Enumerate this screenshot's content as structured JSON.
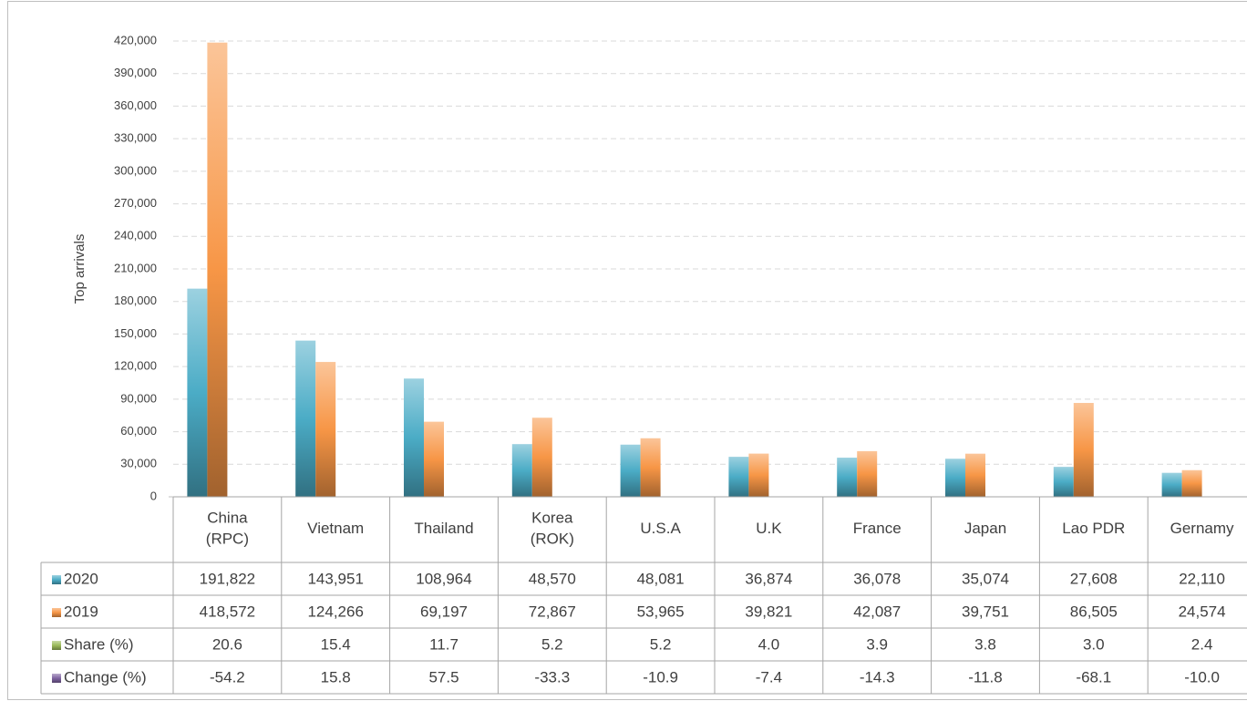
{
  "chart_data": {
    "type": "bar",
    "y_label": "Top arrivals",
    "categories": [
      "China\n(RPC)",
      "Vietnam",
      "Thailand",
      "Korea\n(ROK)",
      "U.S.A",
      "U.K",
      "France",
      "Japan",
      "Lao PDR",
      "Gernamy"
    ],
    "series": [
      {
        "name": "2020",
        "color": "#4bacc6",
        "values": [
          191822,
          143951,
          108964,
          48570,
          48081,
          36874,
          36078,
          35074,
          27608,
          22110
        ],
        "value_labels": [
          "191,822",
          "143,951",
          "108,964",
          "48,570",
          "48,081",
          "36,874",
          "36,078",
          "35,074",
          "27,608",
          "22,110"
        ]
      },
      {
        "name": "2019",
        "color": "#f79646",
        "values": [
          418572,
          124266,
          69197,
          72867,
          53965,
          39821,
          42087,
          39751,
          86505,
          24574
        ],
        "value_labels": [
          "418,572",
          "124,266",
          "69,197",
          "72,867",
          "53,965",
          "39,821",
          "42,087",
          "39,751",
          "86,505",
          "24,574"
        ]
      },
      {
        "name": "Share (%)",
        "color": "#9bbb59",
        "values": [
          20.6,
          15.4,
          11.7,
          5.2,
          5.2,
          4.0,
          3.9,
          3.8,
          3.0,
          2.4
        ],
        "value_labels": [
          "20.6",
          "15.4",
          "11.7",
          "5.2",
          "5.2",
          "4.0",
          "3.9",
          "3.8",
          "3.0",
          "2.4"
        ]
      },
      {
        "name": "Change (%)",
        "color": "#8064a2",
        "values": [
          -54.2,
          15.8,
          57.5,
          -33.3,
          -10.9,
          -7.4,
          -14.3,
          -11.8,
          -68.1,
          -10.0
        ],
        "value_labels": [
          "-54.2",
          "15.8",
          "57.5",
          "-33.3",
          "-10.9",
          "-7.4",
          "-14.3",
          "-11.8",
          "-68.1",
          "-10.0"
        ]
      }
    ],
    "ylim": [
      0,
      420000
    ],
    "yticks": [
      0,
      {
        "value": 30000,
        "label": "30,000"
      },
      {
        "value": 60000,
        "label": "60,000"
      },
      {
        "value": 90000,
        "label": "90,000"
      },
      {
        "value": 120000,
        "label": "120,000"
      },
      {
        "value": 150000,
        "label": "150,000"
      },
      {
        "value": 180000,
        "label": "180,000"
      },
      {
        "value": 210000,
        "label": "210,000"
      },
      {
        "value": 240000,
        "label": "240,000"
      },
      {
        "value": 270000,
        "label": "270,000"
      },
      {
        "value": 300000,
        "label": "300,000"
      },
      {
        "value": 330000,
        "label": "330,000"
      },
      {
        "value": 360000,
        "label": "360,000"
      },
      {
        "value": 390000,
        "label": "390,000"
      },
      {
        "value": 420000,
        "label": "420,000"
      }
    ],
    "grid": true,
    "data_table": true
  }
}
